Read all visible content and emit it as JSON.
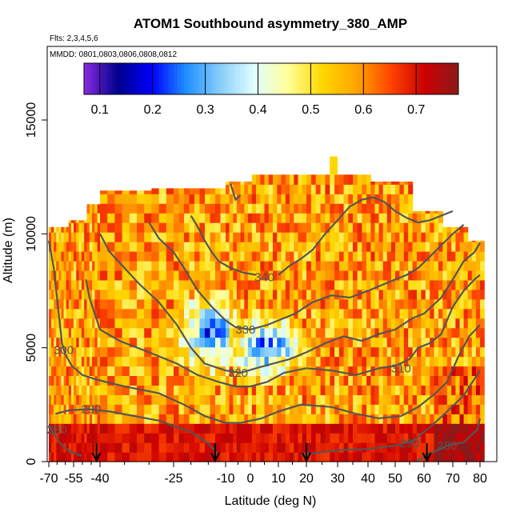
{
  "chart_data": {
    "type": "heatmap",
    "title": "ATOM1 Southbound asymmetry_380_AMP",
    "flights_note": "Flts: 2,3,4,5,6",
    "dates_note": "MMDD: 0801,0803,0806,0808,0812",
    "xlabel": "Latitude (deg N)",
    "ylabel": "Altitude (m)",
    "xlim": [
      -70,
      82
    ],
    "ylim": [
      0,
      17500
    ],
    "x_ticks": [
      -70,
      -55,
      -40,
      -25,
      -10,
      0,
      10,
      20,
      30,
      40,
      50,
      60,
      70,
      80
    ],
    "x_tick_labels": [
      "-70",
      "-55",
      "-40",
      "-25",
      "-10",
      "0",
      "10",
      "20",
      "30",
      "40",
      "50",
      "60",
      "70",
      "80"
    ],
    "x_minor_ticks": [
      -65,
      -60,
      -50,
      -45,
      -35,
      -30,
      -20,
      -15,
      -5,
      5,
      15,
      25,
      35,
      45,
      55,
      65,
      75
    ],
    "y_ticks": [
      0,
      5000,
      10000,
      15000
    ],
    "y_tick_labels": [
      "0",
      "5000",
      "10000",
      "15000"
    ],
    "colorbar": {
      "range": [
        0.07,
        0.78
      ],
      "ticks": [
        0.1,
        0.2,
        0.3,
        0.4,
        0.5,
        0.6,
        0.7
      ],
      "tick_labels": [
        "0.1",
        "0.2",
        "0.3",
        "0.4",
        "0.5",
        "0.6",
        "0.7"
      ],
      "colors": [
        "#8a2be2",
        "#00008b",
        "#0000ff",
        "#1e90ff",
        "#87cefa",
        "#e0ffff",
        "#ffff99",
        "#ffd700",
        "#ffa500",
        "#ff4500",
        "#cd0000",
        "#8b1a1a"
      ]
    },
    "profile_markers_lat": [
      -42,
      -13,
      20,
      61
    ],
    "contours": [
      {
        "label": "280",
        "label_at": [
          -65,
          1400
        ],
        "points": [
          [
            -70,
            1600
          ],
          [
            -66,
            1100
          ],
          [
            -62,
            700
          ],
          [
            -56,
            400
          ],
          [
            -50,
            250
          ]
        ]
      },
      {
        "label": "280",
        "label_at": [
          68,
          700
        ],
        "points": [
          [
            57,
            0
          ],
          [
            62,
            350
          ],
          [
            68,
            700
          ],
          [
            74,
            850
          ],
          [
            79,
            1400
          ],
          [
            80,
            1900
          ]
        ]
      },
      {
        "label": "290",
        "label_at": [
          -45,
          2300
        ],
        "points": [
          [
            -66,
            2100
          ],
          [
            -58,
            2250
          ],
          [
            -47,
            2300
          ],
          [
            -38,
            2200
          ],
          [
            -28,
            1800
          ],
          [
            -20,
            1300
          ],
          [
            -15,
            800
          ],
          [
            -12,
            300
          ]
        ]
      },
      {
        "label": "290",
        "label_at": [
          55,
          800
        ],
        "points": [
          [
            18,
            300
          ],
          [
            30,
            500
          ],
          [
            40,
            550
          ],
          [
            50,
            700
          ],
          [
            56,
            900
          ],
          [
            62,
            1500
          ],
          [
            68,
            2200
          ],
          [
            74,
            2900
          ],
          [
            80,
            4000
          ]
        ]
      },
      {
        "label": "300",
        "label_at": [
          -61,
          4900
        ],
        "points": [
          [
            -70,
            9700
          ],
          [
            -67,
            8500
          ],
          [
            -64,
            6500
          ],
          [
            -62,
            5200
          ],
          [
            -60,
            4700
          ],
          [
            -56,
            4200
          ],
          [
            -50,
            3800
          ],
          [
            -42,
            3600
          ],
          [
            -35,
            3300
          ],
          [
            -28,
            3000
          ],
          [
            -22,
            2500
          ],
          [
            -16,
            2000
          ],
          [
            -10,
            1700
          ],
          [
            -4,
            1700
          ],
          [
            4,
            1900
          ],
          [
            10,
            2200
          ],
          [
            18,
            2500
          ],
          [
            28,
            2400
          ],
          [
            36,
            2100
          ],
          [
            44,
            1900
          ],
          [
            52,
            2000
          ],
          [
            58,
            2400
          ],
          [
            64,
            3000
          ],
          [
            68,
            3500
          ],
          [
            72,
            4600
          ],
          [
            76,
            5500
          ],
          [
            80,
            6000
          ]
        ]
      },
      {
        "label": "310",
        "label_at": [
          52,
          4100
        ],
        "points": [
          [
            -48,
            8000
          ],
          [
            -46,
            7200
          ],
          [
            -43,
            6500
          ],
          [
            -40,
            5800
          ],
          [
            -36,
            5300
          ],
          [
            -30,
            4800
          ],
          [
            -24,
            4300
          ],
          [
            -18,
            3800
          ],
          [
            -12,
            3500
          ],
          [
            -6,
            3300
          ],
          [
            0,
            3300
          ],
          [
            6,
            3500
          ],
          [
            12,
            3900
          ],
          [
            20,
            4100
          ],
          [
            28,
            4000
          ],
          [
            36,
            3800
          ],
          [
            44,
            4100
          ],
          [
            50,
            4200
          ],
          [
            55,
            4500
          ],
          [
            58,
            5000
          ],
          [
            62,
            5200
          ],
          [
            66,
            5600
          ],
          [
            70,
            6800
          ],
          [
            74,
            7500
          ],
          [
            78,
            8000
          ],
          [
            80,
            8200
          ]
        ]
      },
      {
        "label": "320",
        "label_at": [
          -5,
          3900
        ],
        "points": [
          [
            -40,
            10000
          ],
          [
            -38,
            9200
          ],
          [
            -35,
            8500
          ],
          [
            -32,
            7800
          ],
          [
            -28,
            7000
          ],
          [
            -24,
            6000
          ],
          [
            -20,
            5000
          ],
          [
            -16,
            4300
          ],
          [
            -10,
            4000
          ],
          [
            -4,
            3900
          ],
          [
            2,
            4100
          ],
          [
            8,
            4300
          ],
          [
            14,
            4500
          ],
          [
            20,
            4800
          ],
          [
            26,
            5200
          ],
          [
            32,
            5500
          ],
          [
            38,
            5300
          ],
          [
            44,
            5600
          ],
          [
            50,
            5800
          ],
          [
            56,
            6300
          ],
          [
            60,
            6500
          ],
          [
            66,
            7200
          ],
          [
            70,
            8000
          ],
          [
            74,
            8800
          ],
          [
            78,
            9200
          ],
          [
            80,
            9600
          ]
        ]
      },
      {
        "label": "330",
        "label_at": [
          -2,
          5800
        ],
        "points": [
          [
            -30,
            10500
          ],
          [
            -28,
            9800
          ],
          [
            -25,
            9200
          ],
          [
            -22,
            8500
          ],
          [
            -18,
            7500
          ],
          [
            -14,
            6800
          ],
          [
            -10,
            6200
          ],
          [
            -6,
            5900
          ],
          [
            0,
            5800
          ],
          [
            6,
            6000
          ],
          [
            10,
            6200
          ],
          [
            16,
            6500
          ],
          [
            22,
            7000
          ],
          [
            28,
            7300
          ],
          [
            34,
            7200
          ],
          [
            40,
            7500
          ],
          [
            46,
            7800
          ],
          [
            50,
            8000
          ],
          [
            54,
            8200
          ],
          [
            58,
            8500
          ],
          [
            62,
            9000
          ],
          [
            66,
            9500
          ],
          [
            70,
            10000
          ],
          [
            74,
            10400
          ]
        ]
      },
      {
        "label": "340",
        "label_at": [
          5,
          8100
        ],
        "points": [
          [
            -20,
            10800
          ],
          [
            -18,
            10300
          ],
          [
            -16,
            9700
          ],
          [
            -14,
            9200
          ],
          [
            -12,
            8800
          ],
          [
            -8,
            8500
          ],
          [
            -3,
            8300
          ],
          [
            2,
            8200
          ]
        ]
      },
      {
        "label": "",
        "points": [
          [
            10,
            8200
          ],
          [
            14,
            8600
          ],
          [
            18,
            8900
          ],
          [
            22,
            9300
          ],
          [
            26,
            10000
          ],
          [
            30,
            10600
          ],
          [
            34,
            11200
          ],
          [
            38,
            11500
          ],
          [
            42,
            11600
          ],
          [
            46,
            11400
          ],
          [
            50,
            11000
          ],
          [
            54,
            10700
          ],
          [
            58,
            10500
          ],
          [
            62,
            10600
          ],
          [
            66,
            10800
          ],
          [
            70,
            11000
          ]
        ]
      },
      {
        "label": "",
        "points": [
          [
            -8,
            12200
          ],
          [
            -6,
            11500
          ],
          [
            -4,
            11700
          ]
        ]
      }
    ]
  }
}
